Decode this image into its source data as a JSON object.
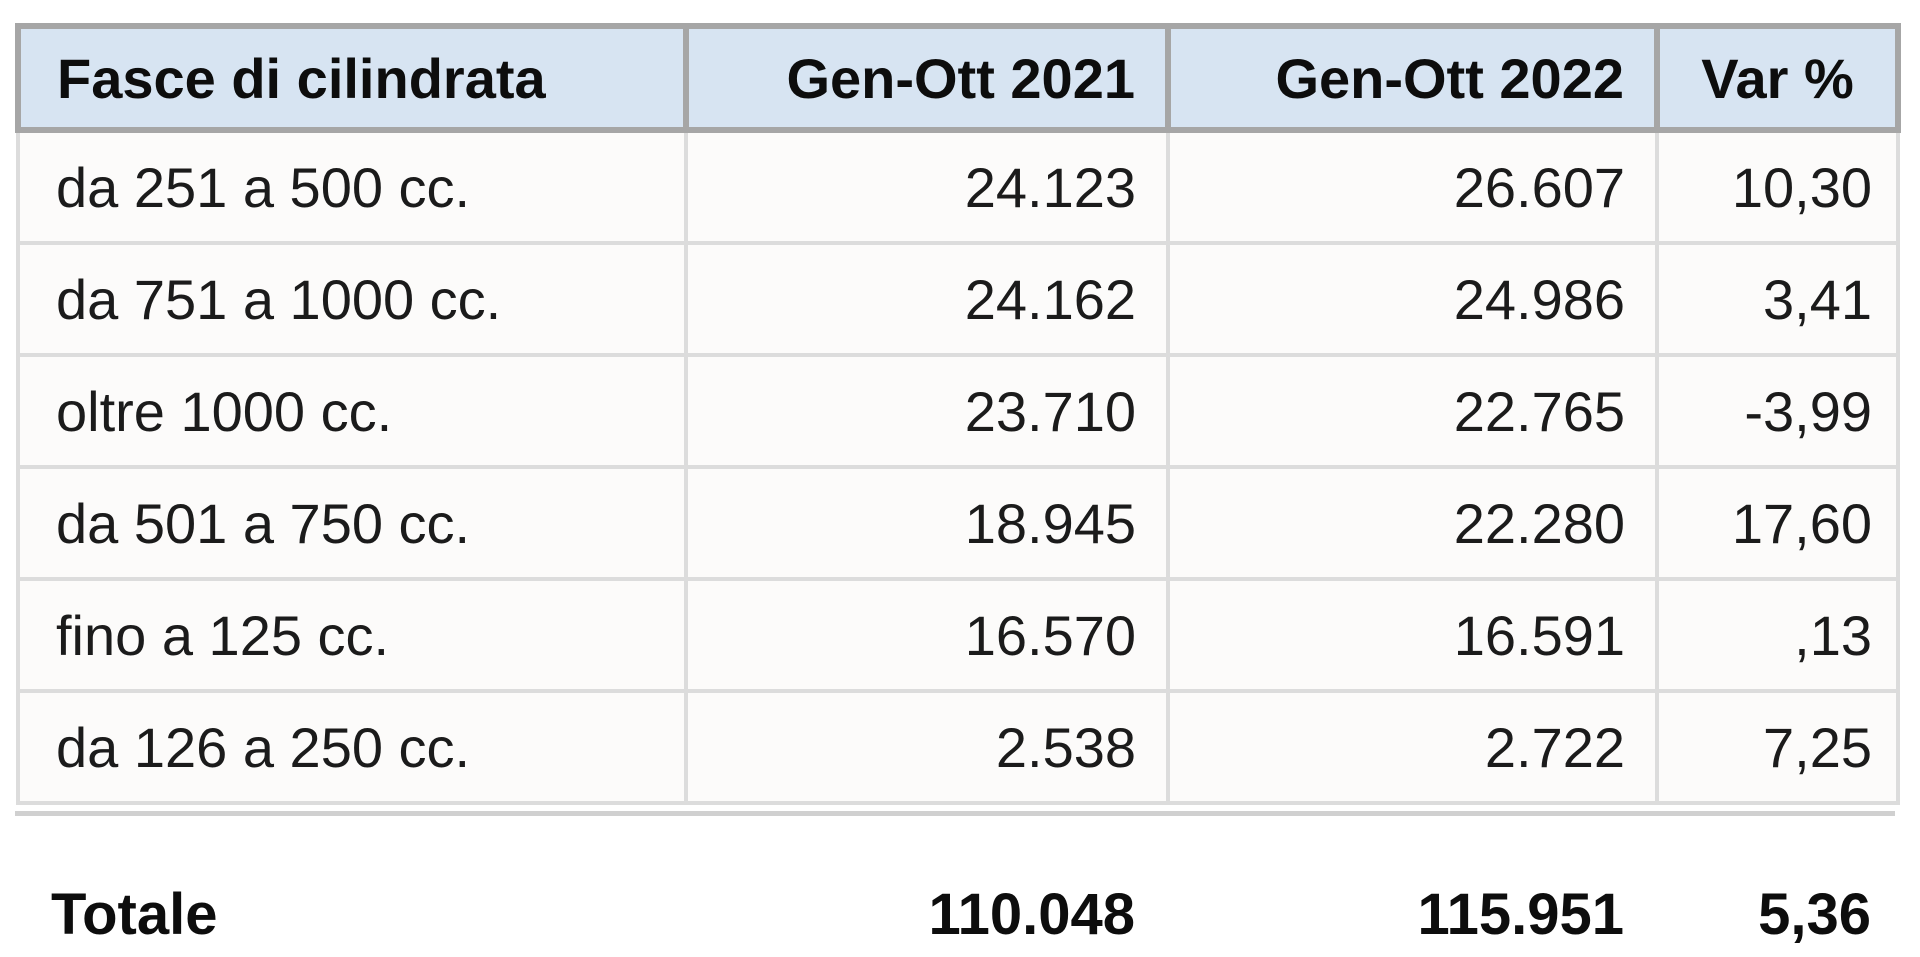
{
  "table": {
    "headers": {
      "category": "Fasce di cilindrata",
      "y2021": "Gen-Ott 2021",
      "y2022": "Gen-Ott 2022",
      "var": "Var %"
    },
    "rows": [
      {
        "label": "da 251 a 500 cc.",
        "y2021": "24.123",
        "y2022": "26.607",
        "var": "10,30"
      },
      {
        "label": "da 751 a 1000 cc.",
        "y2021": "24.162",
        "y2022": "24.986",
        "var": "3,41"
      },
      {
        "label": "oltre 1000 cc.",
        "y2021": "23.710",
        "y2022": "22.765",
        "var": "-3,99"
      },
      {
        "label": "da 501 a 750 cc.",
        "y2021": "18.945",
        "y2022": "22.280",
        "var": "17,60"
      },
      {
        "label": "fino a 125 cc.",
        "y2021": "16.570",
        "y2022": "16.591",
        "var": ",13"
      },
      {
        "label": "da 126 a 250 cc.",
        "y2021": "2.538",
        "y2022": "2.722",
        "var": "7,25"
      }
    ],
    "total": {
      "label": "Totale",
      "y2021": "110.048",
      "y2022": "115.951",
      "var": "5,36"
    }
  },
  "chart_data": {
    "type": "table",
    "title": "",
    "categories": [
      "da 251 a 500 cc.",
      "da 751 a 1000 cc.",
      "oltre 1000 cc.",
      "da 501 a 750 cc.",
      "fino a 125 cc.",
      "da 126 a 250 cc."
    ],
    "series": [
      {
        "name": "Gen-Ott 2021",
        "values": [
          24123,
          24162,
          23710,
          18945,
          16570,
          2538
        ]
      },
      {
        "name": "Gen-Ott 2022",
        "values": [
          26607,
          24986,
          22765,
          22280,
          16591,
          2722
        ]
      },
      {
        "name": "Var %",
        "values": [
          10.3,
          3.41,
          -3.99,
          17.6,
          0.13,
          7.25
        ]
      }
    ],
    "totals": {
      "Gen-Ott 2021": 110048,
      "Gen-Ott 2022": 115951,
      "Var %": 5.36
    }
  },
  "colors": {
    "header_bg": "#d7e4f2",
    "header_border": "#a6a6a6",
    "grid_line": "#dcdcdc",
    "text": "#111111"
  }
}
